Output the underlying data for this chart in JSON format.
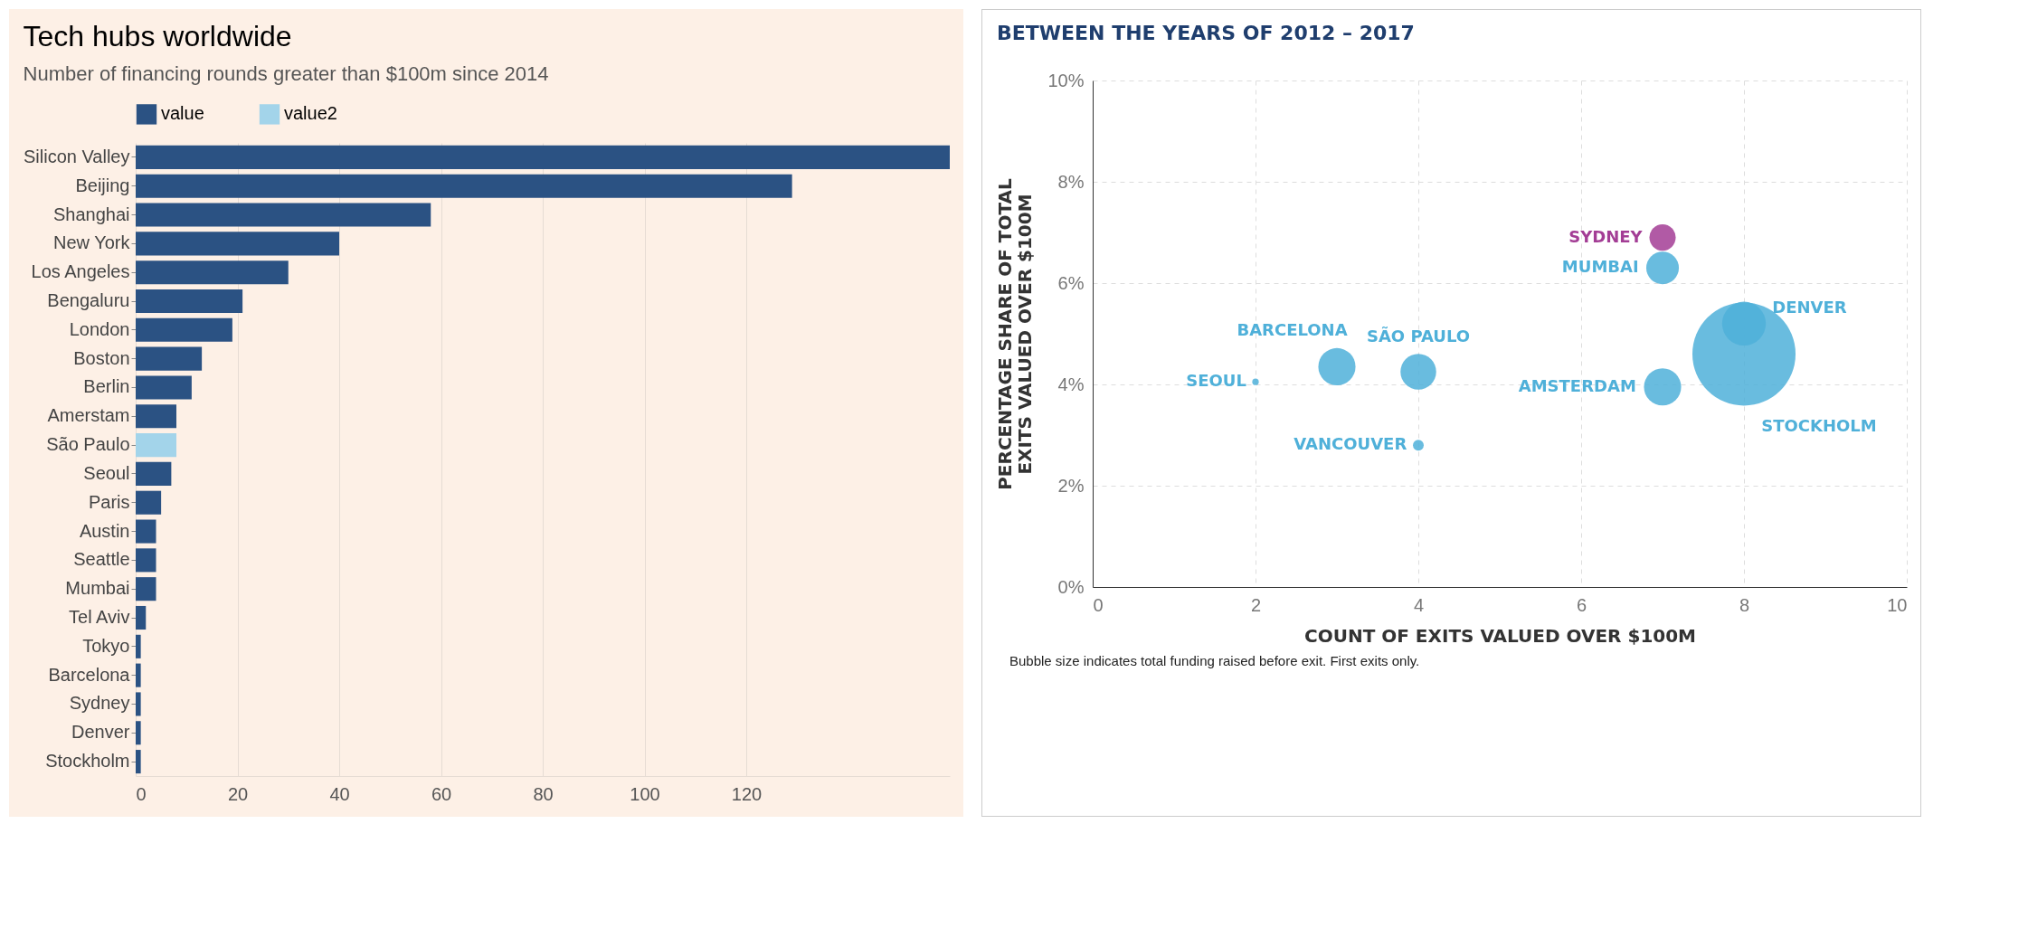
{
  "chart_data": [
    {
      "type": "bar",
      "orientation": "horizontal",
      "title": "Tech hubs worldwide",
      "subtitle": "Number of financing rounds greater than $100m since 2014",
      "categories": [
        "Silicon Valley",
        "Beijing",
        "Shanghai",
        "New York",
        "Los Angeles",
        "Bengaluru",
        "London",
        "Boston",
        "Berlin",
        "Amerstam",
        "São Paulo",
        "Seoul",
        "Paris",
        "Austin",
        "Seattle",
        "Mumbai",
        "Tel Aviv",
        "Tokyo",
        "Barcelona",
        "Sydney",
        "Denver",
        "Stockholm"
      ],
      "series": [
        {
          "name": "value",
          "color": "#2b5283",
          "values": [
            160,
            129,
            58,
            40,
            30,
            21,
            19,
            13,
            11,
            8,
            null,
            7,
            5,
            4,
            4,
            4,
            2,
            1,
            1,
            1,
            1,
            1
          ]
        },
        {
          "name": "value2",
          "color": "#a3d4ea",
          "values": [
            null,
            null,
            null,
            null,
            null,
            null,
            null,
            null,
            null,
            null,
            8,
            null,
            null,
            null,
            null,
            null,
            null,
            null,
            null,
            null,
            null,
            null
          ]
        }
      ],
      "xlim": [
        0,
        160
      ],
      "xticks": [
        0,
        20,
        40,
        60,
        80,
        100,
        120
      ],
      "grid": "x",
      "legend": "top left"
    },
    {
      "type": "bubble",
      "title": "BETWEEN THE YEARS OF 2012 – 2017",
      "xlabel": "COUNT OF EXITS VALUED OVER $100M",
      "ylabel": "PERCENTAGE SHARE OF TOTAL EXITS VALUED OVER $100M",
      "series": [
        {
          "name": "STOCKHOLM",
          "color": "#4fb0d9",
          "x": [
            8
          ],
          "values": [
            4.6
          ],
          "sizes": [
            1
          ]
        },
        {
          "name": "DENVER",
          "color": "#4fb0d9",
          "x": [
            8
          ],
          "values": [
            5.2
          ],
          "sizes": [
            0.18
          ]
        },
        {
          "name": "SYDNEY",
          "color": "#a33d95",
          "x": [
            7
          ],
          "values": [
            6.9
          ],
          "sizes": [
            0.065
          ]
        },
        {
          "name": "MUMBAI",
          "color": "#4fb0d9",
          "x": [
            7
          ],
          "values": [
            6.3
          ],
          "sizes": [
            0.1
          ]
        },
        {
          "name": "AMSTERDAM",
          "color": "#4fb0d9",
          "x": [
            7
          ],
          "values": [
            3.95
          ],
          "sizes": [
            0.13
          ]
        },
        {
          "name": "SÃO PAULO",
          "color": "#4fb0d9",
          "x": [
            4
          ],
          "values": [
            4.25
          ],
          "sizes": [
            0.12
          ]
        },
        {
          "name": "BARCELONA",
          "color": "#4fb0d9",
          "x": [
            3
          ],
          "values": [
            4.35
          ],
          "sizes": [
            0.13
          ]
        },
        {
          "name": "SEOUL",
          "color": "#4fb0d9",
          "x": [
            2
          ],
          "values": [
            4.05
          ],
          "sizes": [
            0.004
          ]
        },
        {
          "name": "VANCOUVER",
          "color": "#4fb0d9",
          "x": [
            4
          ],
          "values": [
            2.8
          ],
          "sizes": [
            0.011
          ]
        }
      ],
      "xlim": [
        0,
        10
      ],
      "xticks": [
        0,
        2,
        4,
        6,
        8,
        10
      ],
      "ylim": [
        0,
        10
      ],
      "yticks": [
        {
          "value": 0,
          "label": "0%"
        },
        {
          "value": 2,
          "label": "2%"
        },
        {
          "value": 4,
          "label": "4%"
        },
        {
          "value": 6,
          "label": "6%"
        },
        {
          "value": 8,
          "label": "8%"
        },
        {
          "value": 10,
          "label": "10%"
        }
      ],
      "grid": true,
      "annotations": [
        "Bubble size indicates total funding raised before exit. First exits only."
      ]
    }
  ]
}
